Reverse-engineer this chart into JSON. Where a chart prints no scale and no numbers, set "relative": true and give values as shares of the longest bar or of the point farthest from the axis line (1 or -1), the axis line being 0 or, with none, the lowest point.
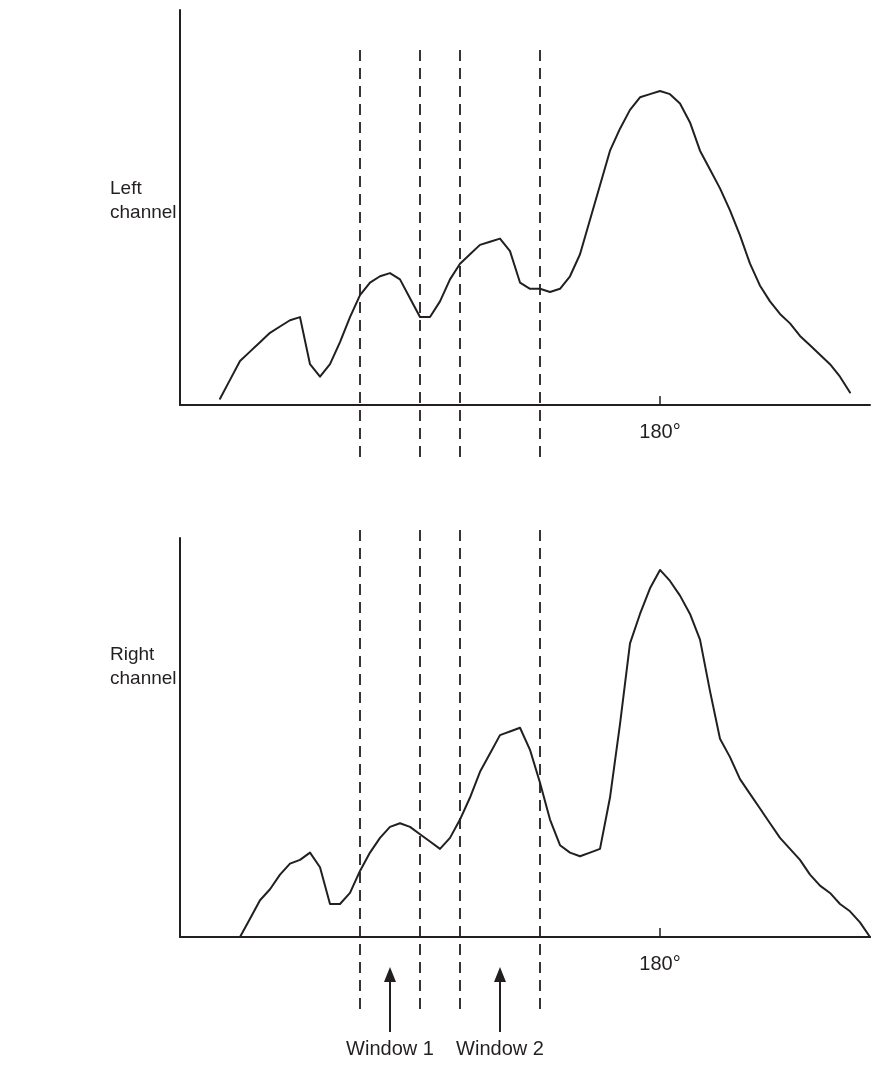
{
  "chart_data": [
    {
      "type": "line",
      "relative": true,
      "ylabel": "Left channel",
      "grid": "x",
      "marker": "none",
      "line_style": "solid",
      "categories": [
        null,
        null,
        null,
        null,
        null,
        null,
        null,
        null,
        null,
        null,
        null,
        null,
        null,
        null,
        null,
        null,
        null,
        null,
        null,
        null,
        null,
        null,
        null,
        null,
        null,
        null,
        null,
        null,
        null,
        null,
        null,
        null,
        null,
        null,
        null,
        null,
        null,
        null,
        null,
        null,
        null,
        null,
        null,
        null,
        null,
        null,
        null,
        null,
        null,
        null,
        null,
        null,
        null,
        null,
        null,
        null,
        null,
        null,
        null,
        null,
        null,
        null,
        null,
        null,
        null,
        null,
        null,
        null,
        null,
        null
      ],
      "series": [
        {
          "color": "#231f20",
          "values": [
            null,
            null,
            null,
            null,
            0.02,
            0.08,
            0.14,
            0.17,
            0.2,
            0.23,
            0.25,
            0.27,
            0.28,
            0.13,
            0.09,
            0.13,
            0.2,
            0.28,
            0.35,
            0.39,
            0.41,
            0.42,
            0.4,
            0.34,
            0.28,
            0.28,
            0.33,
            0.4,
            0.45,
            0.48,
            0.51,
            0.52,
            0.53,
            0.49,
            0.39,
            0.37,
            0.37,
            0.36,
            0.37,
            0.41,
            0.48,
            0.59,
            0.7,
            0.81,
            0.88,
            0.94,
            0.98,
            0.99,
            1,
            0.99,
            0.96,
            0.9,
            0.81,
            0.75,
            0.69,
            0.62,
            0.54,
            0.45,
            0.38,
            0.33,
            0.29,
            0.26,
            0.22,
            0.19,
            0.16,
            0.13,
            0.09,
            0.04,
            null,
            null
          ]
        }
      ],
      "annotations": [
        "180°"
      ]
    },
    {
      "type": "line",
      "relative": true,
      "ylabel": "Right channel",
      "grid": "x",
      "marker": "none",
      "line_style": "solid",
      "categories": [
        null,
        null,
        null,
        null,
        null,
        null,
        null,
        null,
        null,
        null,
        null,
        null,
        null,
        null,
        null,
        null,
        null,
        null,
        null,
        null,
        null,
        null,
        null,
        null,
        null,
        null,
        null,
        null,
        null,
        null,
        null,
        null,
        null,
        null,
        null,
        null,
        null,
        null,
        null,
        null,
        null,
        null,
        null,
        null,
        null,
        null,
        null,
        null,
        null,
        null,
        null,
        null,
        null,
        null,
        null,
        null,
        null,
        null,
        null,
        null,
        null,
        null,
        null,
        null,
        null,
        null,
        null,
        null,
        null,
        null
      ],
      "series": [
        {
          "color": "#231f20",
          "values": [
            null,
            null,
            null,
            null,
            null,
            null,
            0,
            0.05,
            0.1,
            0.13,
            0.17,
            0.2,
            0.21,
            0.23,
            0.19,
            0.09,
            0.09,
            0.12,
            0.18,
            0.23,
            0.27,
            0.3,
            0.31,
            0.3,
            0.28,
            0.26,
            0.24,
            0.27,
            0.32,
            0.38,
            0.45,
            0.5,
            0.55,
            0.56,
            0.57,
            0.51,
            0.42,
            0.32,
            0.25,
            0.23,
            0.22,
            0.23,
            0.24,
            0.38,
            0.58,
            0.8,
            0.88,
            0.95,
            1,
            0.97,
            0.93,
            0.88,
            0.81,
            0.67,
            0.54,
            0.49,
            0.43,
            0.39,
            0.35,
            0.31,
            0.27,
            0.24,
            0.21,
            0.17,
            0.14,
            0.12,
            0.09,
            0.07,
            0.04,
            0
          ]
        }
      ],
      "annotations": [
        "180°",
        "Window 1",
        "Window 2"
      ]
    }
  ]
}
